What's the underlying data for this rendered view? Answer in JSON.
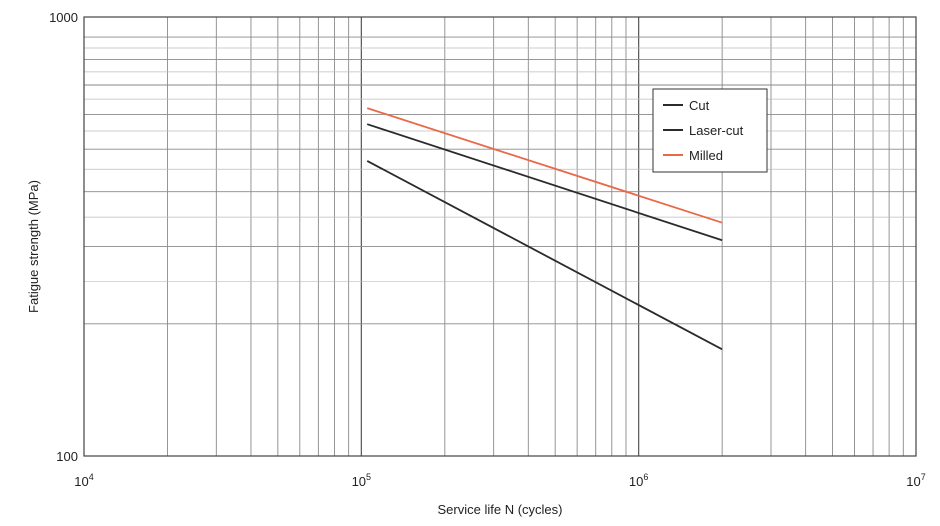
{
  "chart_data": {
    "type": "line",
    "xlabel": "Service life N (cycles)",
    "ylabel": "Fatigue strength (MPa)",
    "xscale": "log",
    "yscale": "log",
    "xlim": [
      10000,
      10000000
    ],
    "ylim": [
      100,
      1000
    ],
    "grid": true,
    "x_tick_labels": [
      {
        "base": "10",
        "exp": "4"
      },
      {
        "base": "10",
        "exp": "5"
      },
      {
        "base": "10",
        "exp": "6"
      },
      {
        "base": "10",
        "exp": "7"
      }
    ],
    "y_tick_labels": [
      "1000",
      "100"
    ],
    "legend_position": "top-right",
    "series": [
      {
        "name": "Cut",
        "color": "#2b2b2b",
        "x": [
          105000,
          2000000
        ],
        "y": [
          470,
          175
        ]
      },
      {
        "name": "Laser-cut",
        "color": "#2b2b2b",
        "x": [
          105000,
          2000000
        ],
        "y": [
          570,
          310
        ]
      },
      {
        "name": "Milled",
        "color": "#e8694a",
        "x": [
          105000,
          2000000
        ],
        "y": [
          620,
          340
        ]
      }
    ]
  }
}
